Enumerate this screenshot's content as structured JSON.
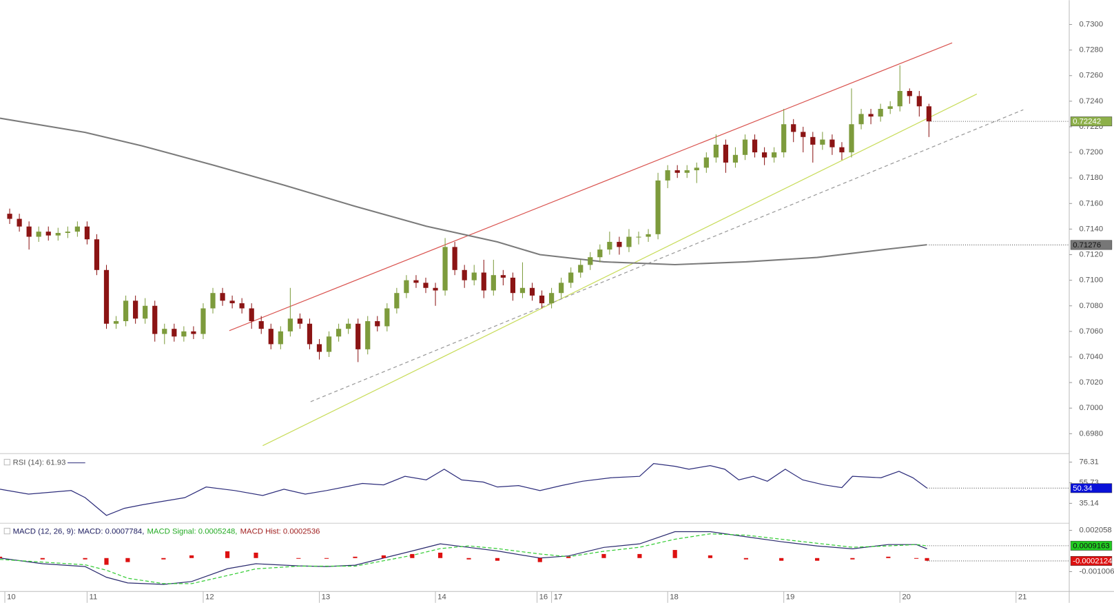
{
  "chart_data": [
    {
      "type": "candlestick",
      "up_color": "#7d9b3c",
      "down_color": "#8b1414",
      "ylim": [
        0.6965,
        0.7319
      ],
      "yticks": [
        {
          "value": 0.698,
          "label": "0.6980"
        },
        {
          "value": 0.7,
          "label": "0.7000"
        },
        {
          "value": 0.702,
          "label": "0.7020"
        },
        {
          "value": 0.704,
          "label": "0.7040"
        },
        {
          "value": 0.706,
          "label": "0.7060"
        },
        {
          "value": 0.708,
          "label": "0.7080"
        },
        {
          "value": 0.71,
          "label": "0.7100"
        },
        {
          "value": 0.712,
          "label": "0.7120"
        },
        {
          "value": 0.714,
          "label": "0.7140"
        },
        {
          "value": 0.716,
          "label": "0.7160"
        },
        {
          "value": 0.718,
          "label": "0.7180"
        },
        {
          "value": 0.72,
          "label": "0.7200"
        },
        {
          "value": 0.722,
          "label": "0.7220"
        },
        {
          "value": 0.724,
          "label": "0.7240"
        },
        {
          "value": 0.726,
          "label": "0.7260"
        },
        {
          "value": 0.728,
          "label": "0.7280"
        },
        {
          "value": 0.73,
          "label": "0.7300"
        }
      ],
      "xlim": [
        0,
        221
      ],
      "xticks": [
        {
          "value": 1,
          "label": "10"
        },
        {
          "value": 18,
          "label": "11"
        },
        {
          "value": 42,
          "label": "12"
        },
        {
          "value": 66,
          "label": "13"
        },
        {
          "value": 90,
          "label": "14"
        },
        {
          "value": 111,
          "label": "16"
        },
        {
          "value": 114,
          "label": "17"
        },
        {
          "value": 138,
          "label": "18"
        },
        {
          "value": 162,
          "label": "19"
        },
        {
          "value": 186,
          "label": "20"
        },
        {
          "value": 210,
          "label": "21"
        }
      ],
      "x": [
        2,
        4,
        6,
        8,
        10,
        12,
        14,
        16,
        18,
        20,
        22,
        24,
        26,
        28,
        30,
        32,
        34,
        36,
        38,
        40,
        42,
        44,
        46,
        48,
        50,
        52,
        54,
        56,
        58,
        60,
        62,
        64,
        66,
        68,
        70,
        72,
        74,
        76,
        78,
        80,
        82,
        84,
        86,
        88,
        90,
        92,
        94,
        96,
        98,
        100,
        102,
        104,
        106,
        108,
        110,
        112,
        114,
        116,
        118,
        120,
        122,
        124,
        126,
        128,
        130,
        132,
        134,
        136,
        138,
        140,
        142,
        144,
        146,
        148,
        150,
        152,
        154,
        156,
        158,
        160,
        162,
        164,
        166,
        168,
        170,
        172,
        174,
        176,
        178,
        180,
        182,
        184,
        186,
        188,
        190,
        192
      ],
      "open": [
        0.7152,
        0.7148,
        0.7142,
        0.7134,
        0.7138,
        0.7135,
        0.7137,
        0.7138,
        0.7142,
        0.7132,
        0.7108,
        0.7066,
        0.7068,
        0.7084,
        0.707,
        0.708,
        0.7058,
        0.7062,
        0.7056,
        0.706,
        0.7058,
        0.7078,
        0.709,
        0.7084,
        0.7082,
        0.7078,
        0.7068,
        0.7062,
        0.705,
        0.706,
        0.707,
        0.7066,
        0.705,
        0.7044,
        0.7056,
        0.7062,
        0.7066,
        0.7046,
        0.7068,
        0.7064,
        0.7078,
        0.709,
        0.71,
        0.7098,
        0.7094,
        0.7092,
        0.7126,
        0.7108,
        0.71,
        0.7106,
        0.7092,
        0.7104,
        0.7102,
        0.709,
        0.7094,
        0.7088,
        0.7082,
        0.709,
        0.7098,
        0.7106,
        0.7112,
        0.7118,
        0.7124,
        0.713,
        0.7126,
        0.7134,
        0.7134,
        0.7136,
        0.7178,
        0.7186,
        0.7184,
        0.7186,
        0.7188,
        0.7196,
        0.7206,
        0.7192,
        0.7198,
        0.721,
        0.72,
        0.7196,
        0.72,
        0.7222,
        0.7216,
        0.7212,
        0.7206,
        0.721,
        0.7204,
        0.72,
        0.7222,
        0.723,
        0.7228,
        0.7234,
        0.7236,
        0.7248,
        0.7244,
        0.7236
      ],
      "high": [
        0.7156,
        0.7152,
        0.7146,
        0.7142,
        0.7142,
        0.7141,
        0.7142,
        0.7146,
        0.7146,
        0.7136,
        0.7112,
        0.7072,
        0.7088,
        0.7088,
        0.7086,
        0.7084,
        0.7066,
        0.7066,
        0.7064,
        0.7064,
        0.7082,
        0.7094,
        0.7094,
        0.7088,
        0.7086,
        0.7082,
        0.7072,
        0.7066,
        0.7064,
        0.7094,
        0.7074,
        0.707,
        0.7054,
        0.706,
        0.7066,
        0.707,
        0.707,
        0.7072,
        0.7072,
        0.7082,
        0.7094,
        0.7104,
        0.7104,
        0.7102,
        0.7098,
        0.7133,
        0.713,
        0.7112,
        0.7112,
        0.7116,
        0.7116,
        0.7108,
        0.7106,
        0.7114,
        0.7098,
        0.7092,
        0.7094,
        0.7102,
        0.711,
        0.7116,
        0.7122,
        0.7128,
        0.7138,
        0.7134,
        0.714,
        0.7138,
        0.714,
        0.7184,
        0.719,
        0.719,
        0.719,
        0.7192,
        0.72,
        0.7214,
        0.721,
        0.7204,
        0.7214,
        0.7214,
        0.7204,
        0.7204,
        0.7234,
        0.7226,
        0.722,
        0.7216,
        0.7216,
        0.7214,
        0.7208,
        0.725,
        0.7234,
        0.7234,
        0.7238,
        0.724,
        0.7268,
        0.725,
        0.7248,
        0.7238
      ],
      "low": [
        0.7144,
        0.7138,
        0.7124,
        0.713,
        0.7131,
        0.7131,
        0.7133,
        0.7134,
        0.7128,
        0.7104,
        0.7062,
        0.7062,
        0.7064,
        0.7066,
        0.7066,
        0.7052,
        0.705,
        0.7052,
        0.7052,
        0.7054,
        0.7054,
        0.7074,
        0.708,
        0.7078,
        0.7074,
        0.7062,
        0.7058,
        0.7046,
        0.7046,
        0.7056,
        0.7062,
        0.7046,
        0.7038,
        0.704,
        0.7052,
        0.7058,
        0.7036,
        0.7042,
        0.706,
        0.706,
        0.7074,
        0.7086,
        0.7094,
        0.709,
        0.708,
        0.7088,
        0.7104,
        0.7094,
        0.7096,
        0.7086,
        0.7088,
        0.7096,
        0.7084,
        0.7086,
        0.7084,
        0.7078,
        0.7078,
        0.7086,
        0.7094,
        0.7102,
        0.7108,
        0.7114,
        0.712,
        0.712,
        0.7122,
        0.7128,
        0.713,
        0.7132,
        0.7172,
        0.718,
        0.718,
        0.7176,
        0.7184,
        0.7192,
        0.7184,
        0.7188,
        0.7194,
        0.7196,
        0.719,
        0.7192,
        0.7196,
        0.7208,
        0.72,
        0.7192,
        0.7202,
        0.7198,
        0.7194,
        0.7196,
        0.7218,
        0.7222,
        0.7224,
        0.723,
        0.7232,
        0.7238,
        0.7228,
        0.7212
      ],
      "close": [
        0.7148,
        0.7142,
        0.7134,
        0.7138,
        0.7135,
        0.7137,
        0.7138,
        0.7142,
        0.7132,
        0.7108,
        0.7066,
        0.7068,
        0.7084,
        0.707,
        0.708,
        0.7058,
        0.7062,
        0.7056,
        0.706,
        0.7058,
        0.7078,
        0.709,
        0.7084,
        0.7082,
        0.7078,
        0.7068,
        0.7062,
        0.705,
        0.706,
        0.707,
        0.7066,
        0.705,
        0.7044,
        0.7056,
        0.7062,
        0.7066,
        0.7046,
        0.7068,
        0.7064,
        0.7078,
        0.709,
        0.71,
        0.7098,
        0.7094,
        0.7092,
        0.7126,
        0.7108,
        0.71,
        0.7106,
        0.7092,
        0.7104,
        0.7102,
        0.709,
        0.7094,
        0.7088,
        0.7082,
        0.709,
        0.7098,
        0.7106,
        0.7112,
        0.7118,
        0.7124,
        0.713,
        0.7126,
        0.7134,
        0.7134,
        0.7136,
        0.7178,
        0.7186,
        0.7184,
        0.7186,
        0.7188,
        0.7196,
        0.7206,
        0.7192,
        0.7198,
        0.721,
        0.72,
        0.7196,
        0.72,
        0.7222,
        0.7216,
        0.7212,
        0.7206,
        0.721,
        0.7204,
        0.72,
        0.7222,
        0.723,
        0.7228,
        0.7234,
        0.7236,
        0.7248,
        0.7244,
        0.7236,
        0.72242
      ],
      "lines": [
        {
          "color": "#d9534f",
          "x": [
            47.4,
            196.8
          ],
          "values": [
            0.70606,
            0.72856
          ]
        },
        {
          "color": "#c8dc5a",
          "x": [
            54.3,
            201.9
          ],
          "values": [
            0.69706,
            0.72456
          ]
        },
        {
          "color": "#999999",
          "dash": true,
          "x": [
            64.2,
            211.5
          ],
          "values": [
            0.7005,
            0.72333
          ]
        },
        {
          "color": "#7a7a7a",
          "width": 2,
          "x": [
            0,
            17.6,
            29.4,
            44.1,
            58.7,
            73.4,
            88.1,
            102.8,
            111.6,
            124.8,
            139.5,
            154.2,
            168.9,
            183.6,
            191.6
          ],
          "values": [
            0.72267,
            0.72156,
            0.7205,
            0.719,
            0.71744,
            0.71578,
            0.71422,
            0.713,
            0.712,
            0.71144,
            0.71122,
            0.71144,
            0.71178,
            0.71244,
            0.71278
          ]
        }
      ],
      "last_labels": [
        {
          "value": 0.72242,
          "color": "#8db04a",
          "text_color": "#ffffff"
        },
        {
          "value": 0.71276,
          "color": "#777777",
          "text_color": "#111111"
        }
      ]
    },
    {
      "type": "line",
      "legend": "RSI (14): 61.93",
      "color": "#2b2b7a",
      "ylim": [
        16,
        83.4
      ],
      "yticks": [
        76.31,
        55.73,
        35.14
      ],
      "x": [
        0,
        5.9,
        14.7,
        17.6,
        22,
        25.7,
        29.4,
        33.8,
        38.2,
        42.6,
        48.5,
        54.3,
        58.7,
        63.1,
        67.5,
        72,
        74.9,
        79.3,
        83.7,
        88.1,
        91.8,
        95.4,
        99.9,
        102.8,
        107.2,
        111.6,
        116,
        120.4,
        126.3,
        132.2,
        135.1,
        139.5,
        142.4,
        146.8,
        149.8,
        152.7,
        155.7,
        158.6,
        162.3,
        165.9,
        170.3,
        174,
        176.2,
        182.1,
        185.8,
        188.7,
        191.6
      ],
      "values": [
        49.3,
        44.4,
        47.9,
        40.8,
        23.1,
        30.2,
        33.7,
        37.3,
        40.8,
        51.5,
        47.9,
        43,
        49.3,
        44.4,
        47.9,
        52.2,
        55,
        53.6,
        62.1,
        58.6,
        69.2,
        58.6,
        56.4,
        51.5,
        52.9,
        47.9,
        52.9,
        57.2,
        60.7,
        62.1,
        74.9,
        72.1,
        69.2,
        72.8,
        69.2,
        58.6,
        62.1,
        57.2,
        69.2,
        58.6,
        53.6,
        50.8,
        62.1,
        60.7,
        67.1,
        60.7,
        50.34
      ],
      "last_labels": [
        {
          "value": 50.34,
          "color": "#0a12d8",
          "text_color": "#ffffff"
        }
      ]
    },
    {
      "type": "macd",
      "ylim": [
        -0.00248,
        0.00248
      ],
      "yticks": [
        0.002058,
        -0.0010062
      ],
      "legend": [
        {
          "text": "MACD (12, 26, 9): MACD: 0.0007784,",
          "color": "#1a1a5e"
        },
        {
          "text": "MACD Signal: 0.0005248,",
          "color": "#22aa22"
        },
        {
          "text": "MACD Hist: 0.0002536",
          "color": "#a02020"
        }
      ],
      "x": [
        0,
        8.8,
        17.6,
        22,
        26.4,
        33.8,
        39.6,
        47,
        52.9,
        61.7,
        67.5,
        73.4,
        79.3,
        85.2,
        91,
        96.9,
        102.8,
        111.6,
        117.5,
        124.8,
        132.2,
        139.5,
        146.8,
        154.2,
        161.5,
        168.9,
        176.2,
        183.6,
        189.4,
        191.6
      ],
      "series": [
        {
          "color": "#2a2a6e",
          "values": [
            0,
            -0.000423,
            -0.000634,
            -0.001426,
            -0.001849,
            -0.001955,
            -0.001743,
            -0.000793,
            -0.000423,
            -0.000581,
            -0.000634,
            -0.000528,
            0,
            0.000528,
            0.001057,
            0.000793,
            0.000528,
            0,
            0.000158,
            0.000793,
            0.001057,
            0.001955,
            0.001955,
            0.001585,
            0.001215,
            0.000898,
            0.000687,
            0.001004,
            0.001004,
            0.000687
          ]
        },
        {
          "color": "#33cc33",
          "dash": true,
          "values": [
            -0.0001,
            -0.0003,
            -0.0005,
            -0.0009,
            -0.0015,
            -0.0019,
            -0.0019,
            -0.0013,
            -0.0008,
            -0.0006,
            -0.0006,
            -0.0006,
            -0.0002,
            0.0002,
            0.0007,
            0.0009,
            0.0007,
            0.0003,
            0.0001,
            0.0005,
            0.0008,
            0.0014,
            0.0018,
            0.0017,
            0.0014,
            0.0011,
            0.0008,
            0.0009,
            0.001,
            0.0009
          ]
        },
        {
          "color": "#dd1111",
          "bars": true,
          "values": [
            0.0001,
            -0.0001,
            -0.0001,
            -0.0005,
            -0.0003,
            -0.0001,
            0.0002,
            0.0005,
            0.0004,
            0,
            0,
            0.0001,
            0.0002,
            0.0003,
            0.0004,
            -0.0001,
            -0.0002,
            -0.0003,
            0.0001,
            0.0003,
            0.0003,
            0.0006,
            0.0002,
            -0.0001,
            -0.0002,
            -0.0002,
            -0.0001,
            0.0001,
            0,
            -0.0002
          ]
        }
      ],
      "last_labels": [
        {
          "value": 0.0009163,
          "color": "#22cc22",
          "text_color": "#111111"
        },
        {
          "value": -0.0002124,
          "color": "#dd1111",
          "text_color": "#ffffff"
        }
      ]
    }
  ]
}
